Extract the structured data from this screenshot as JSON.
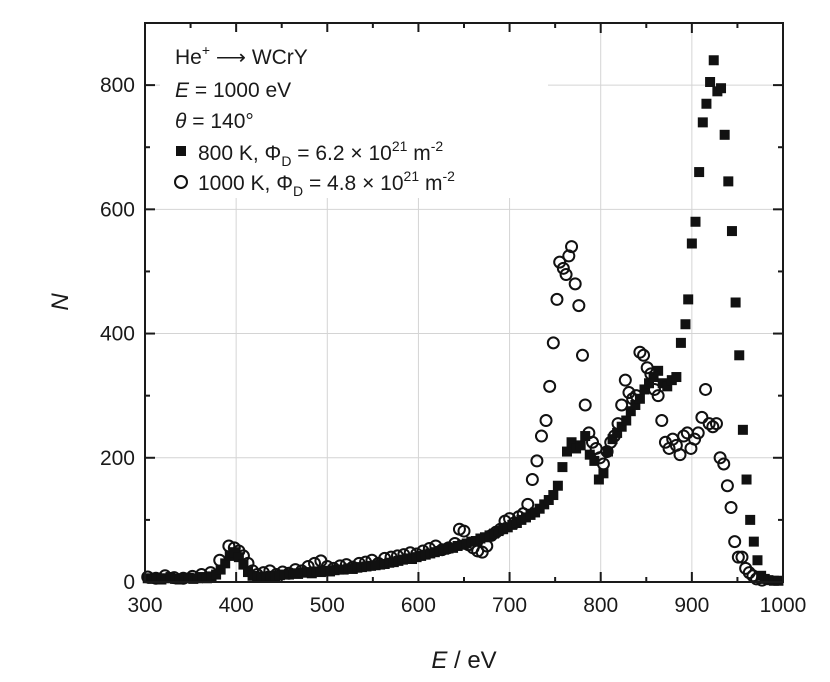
{
  "chart_data": {
    "type": "scatter",
    "xlabel_italic": "E",
    "xlabel_rest": " / eV",
    "ylabel": "N",
    "xlim": [
      300,
      1000
    ],
    "ylim": [
      0,
      900
    ],
    "xticks": [
      300,
      400,
      500,
      600,
      700,
      800,
      900,
      1000
    ],
    "yticks": [
      0,
      200,
      400,
      600,
      800
    ],
    "grid": true,
    "legend_position": "top-left",
    "annotations": {
      "line1_base": "He",
      "line1_sup": "+",
      "line1_rest": " ⟶ WCrY",
      "line2_italic": "E",
      "line2_rest": " = 1000 eV",
      "line3_italic": "θ",
      "line3_rest": " = 140°"
    },
    "series": [
      {
        "name": "800 K",
        "label_main": "800 K, Φ",
        "label_sub": "D",
        "label_mid": " = 6.2 × 10",
        "label_sup": "21",
        "label_unit": " m",
        "label_unit_sup": "-2",
        "marker": "square",
        "points": [
          [
            303,
            6
          ],
          [
            308,
            5
          ],
          [
            313,
            7
          ],
          [
            318,
            4
          ],
          [
            323,
            6
          ],
          [
            328,
            8
          ],
          [
            333,
            5
          ],
          [
            338,
            4
          ],
          [
            343,
            6
          ],
          [
            348,
            7
          ],
          [
            353,
            5
          ],
          [
            358,
            6
          ],
          [
            363,
            8
          ],
          [
            368,
            6
          ],
          [
            373,
            9
          ],
          [
            378,
            12
          ],
          [
            383,
            20
          ],
          [
            388,
            30
          ],
          [
            393,
            42
          ],
          [
            398,
            48
          ],
          [
            403,
            40
          ],
          [
            408,
            28
          ],
          [
            413,
            16
          ],
          [
            418,
            10
          ],
          [
            423,
            8
          ],
          [
            428,
            9
          ],
          [
            433,
            8
          ],
          [
            438,
            10
          ],
          [
            443,
            9
          ],
          [
            448,
            11
          ],
          [
            453,
            12
          ],
          [
            458,
            12
          ],
          [
            463,
            14
          ],
          [
            468,
            13
          ],
          [
            473,
            15
          ],
          [
            478,
            16
          ],
          [
            483,
            14
          ],
          [
            488,
            17
          ],
          [
            493,
            16
          ],
          [
            498,
            18
          ],
          [
            503,
            17
          ],
          [
            508,
            19
          ],
          [
            513,
            20
          ],
          [
            518,
            20
          ],
          [
            523,
            22
          ],
          [
            528,
            21
          ],
          [
            533,
            23
          ],
          [
            538,
            24
          ],
          [
            543,
            25
          ],
          [
            548,
            26
          ],
          [
            553,
            27
          ],
          [
            558,
            28
          ],
          [
            563,
            29
          ],
          [
            568,
            31
          ],
          [
            573,
            32
          ],
          [
            578,
            34
          ],
          [
            583,
            36
          ],
          [
            588,
            38
          ],
          [
            593,
            37
          ],
          [
            598,
            40
          ],
          [
            603,
            42
          ],
          [
            608,
            44
          ],
          [
            613,
            46
          ],
          [
            618,
            48
          ],
          [
            623,
            50
          ],
          [
            628,
            52
          ],
          [
            633,
            54
          ],
          [
            638,
            55
          ],
          [
            643,
            58
          ],
          [
            648,
            60
          ],
          [
            653,
            62
          ],
          [
            658,
            65
          ],
          [
            663,
            66
          ],
          [
            668,
            70
          ],
          [
            673,
            72
          ],
          [
            678,
            75
          ],
          [
            683,
            78
          ],
          [
            688,
            82
          ],
          [
            693,
            85
          ],
          [
            698,
            88
          ],
          [
            703,
            92
          ],
          [
            708,
            95
          ],
          [
            713,
            100
          ],
          [
            718,
            104
          ],
          [
            723,
            108
          ],
          [
            728,
            112
          ],
          [
            733,
            118
          ],
          [
            738,
            125
          ],
          [
            743,
            132
          ],
          [
            748,
            140
          ],
          [
            753,
            155
          ],
          [
            758,
            185
          ],
          [
            763,
            210
          ],
          [
            768,
            225
          ],
          [
            773,
            215
          ],
          [
            778,
            220
          ],
          [
            783,
            235
          ],
          [
            788,
            205
          ],
          [
            793,
            195
          ],
          [
            798,
            165
          ],
          [
            803,
            175
          ],
          [
            808,
            210
          ],
          [
            813,
            230
          ],
          [
            818,
            240
          ],
          [
            823,
            250
          ],
          [
            828,
            260
          ],
          [
            833,
            275
          ],
          [
            838,
            285
          ],
          [
            843,
            295
          ],
          [
            848,
            310
          ],
          [
            853,
            320
          ],
          [
            858,
            330
          ],
          [
            863,
            340
          ],
          [
            868,
            320
          ],
          [
            873,
            315
          ],
          [
            878,
            325
          ],
          [
            883,
            330
          ],
          [
            888,
            385
          ],
          [
            893,
            415
          ],
          [
            896,
            455
          ],
          [
            900,
            545
          ],
          [
            904,
            580
          ],
          [
            908,
            660
          ],
          [
            912,
            740
          ],
          [
            916,
            770
          ],
          [
            920,
            805
          ],
          [
            924,
            840
          ],
          [
            928,
            790
          ],
          [
            932,
            795
          ],
          [
            936,
            720
          ],
          [
            940,
            645
          ],
          [
            944,
            565
          ],
          [
            948,
            450
          ],
          [
            952,
            365
          ],
          [
            956,
            245
          ],
          [
            960,
            165
          ],
          [
            964,
            100
          ],
          [
            968,
            65
          ],
          [
            972,
            35
          ],
          [
            976,
            10
          ],
          [
            980,
            5
          ],
          [
            984,
            3
          ],
          [
            990,
            2
          ],
          [
            995,
            2
          ]
        ]
      },
      {
        "name": "1000 K",
        "label_main": "1000 K, Φ",
        "label_sub": "D",
        "label_mid": " = 4.8 × 10",
        "label_sup": "21",
        "label_unit": " m",
        "label_unit_sup": "-2",
        "marker": "circle",
        "points": [
          [
            303,
            8
          ],
          [
            312,
            6
          ],
          [
            322,
            10
          ],
          [
            332,
            7
          ],
          [
            342,
            6
          ],
          [
            352,
            9
          ],
          [
            362,
            12
          ],
          [
            372,
            15
          ],
          [
            382,
            35
          ],
          [
            392,
            58
          ],
          [
            398,
            55
          ],
          [
            403,
            50
          ],
          [
            408,
            42
          ],
          [
            413,
            30
          ],
          [
            418,
            18
          ],
          [
            423,
            12
          ],
          [
            430,
            15
          ],
          [
            437,
            18
          ],
          [
            444,
            12
          ],
          [
            451,
            16
          ],
          [
            458,
            14
          ],
          [
            465,
            20
          ],
          [
            472,
            18
          ],
          [
            479,
            25
          ],
          [
            486,
            30
          ],
          [
            493,
            34
          ],
          [
            500,
            25
          ],
          [
            507,
            22
          ],
          [
            514,
            26
          ],
          [
            521,
            28
          ],
          [
            528,
            24
          ],
          [
            535,
            30
          ],
          [
            542,
            32
          ],
          [
            549,
            35
          ],
          [
            556,
            30
          ],
          [
            563,
            38
          ],
          [
            570,
            40
          ],
          [
            577,
            42
          ],
          [
            584,
            44
          ],
          [
            591,
            47
          ],
          [
            598,
            45
          ],
          [
            605,
            50
          ],
          [
            612,
            54
          ],
          [
            619,
            58
          ],
          [
            626,
            52
          ],
          [
            633,
            55
          ],
          [
            640,
            62
          ],
          [
            645,
            85
          ],
          [
            650,
            82
          ],
          [
            655,
            60
          ],
          [
            660,
            55
          ],
          [
            665,
            50
          ],
          [
            670,
            48
          ],
          [
            675,
            58
          ],
          [
            680,
            75
          ],
          [
            685,
            80
          ],
          [
            690,
            85
          ],
          [
            695,
            98
          ],
          [
            700,
            102
          ],
          [
            705,
            95
          ],
          [
            710,
            105
          ],
          [
            715,
            110
          ],
          [
            720,
            125
          ],
          [
            725,
            165
          ],
          [
            730,
            195
          ],
          [
            735,
            235
          ],
          [
            740,
            260
          ],
          [
            744,
            315
          ],
          [
            748,
            385
          ],
          [
            752,
            455
          ],
          [
            755,
            515
          ],
          [
            759,
            505
          ],
          [
            762,
            495
          ],
          [
            765,
            525
          ],
          [
            768,
            540
          ],
          [
            772,
            480
          ],
          [
            776,
            445
          ],
          [
            780,
            365
          ],
          [
            783,
            285
          ],
          [
            787,
            240
          ],
          [
            791,
            225
          ],
          [
            795,
            215
          ],
          [
            799,
            200
          ],
          [
            803,
            190
          ],
          [
            807,
            210
          ],
          [
            811,
            225
          ],
          [
            815,
            235
          ],
          [
            819,
            255
          ],
          [
            823,
            285
          ],
          [
            827,
            325
          ],
          [
            831,
            305
          ],
          [
            835,
            295
          ],
          [
            839,
            300
          ],
          [
            843,
            370
          ],
          [
            847,
            365
          ],
          [
            851,
            345
          ],
          [
            855,
            335
          ],
          [
            859,
            310
          ],
          [
            863,
            300
          ],
          [
            867,
            260
          ],
          [
            871,
            225
          ],
          [
            875,
            215
          ],
          [
            879,
            230
          ],
          [
            883,
            220
          ],
          [
            887,
            205
          ],
          [
            891,
            235
          ],
          [
            895,
            240
          ],
          [
            899,
            215
          ],
          [
            903,
            230
          ],
          [
            907,
            240
          ],
          [
            911,
            265
          ],
          [
            915,
            310
          ],
          [
            919,
            255
          ],
          [
            923,
            250
          ],
          [
            927,
            255
          ],
          [
            931,
            200
          ],
          [
            935,
            190
          ],
          [
            939,
            155
          ],
          [
            943,
            120
          ],
          [
            947,
            65
          ],
          [
            951,
            40
          ],
          [
            955,
            40
          ],
          [
            959,
            22
          ],
          [
            963,
            15
          ],
          [
            967,
            10
          ],
          [
            971,
            5
          ],
          [
            977,
            3
          ]
        ]
      }
    ]
  }
}
